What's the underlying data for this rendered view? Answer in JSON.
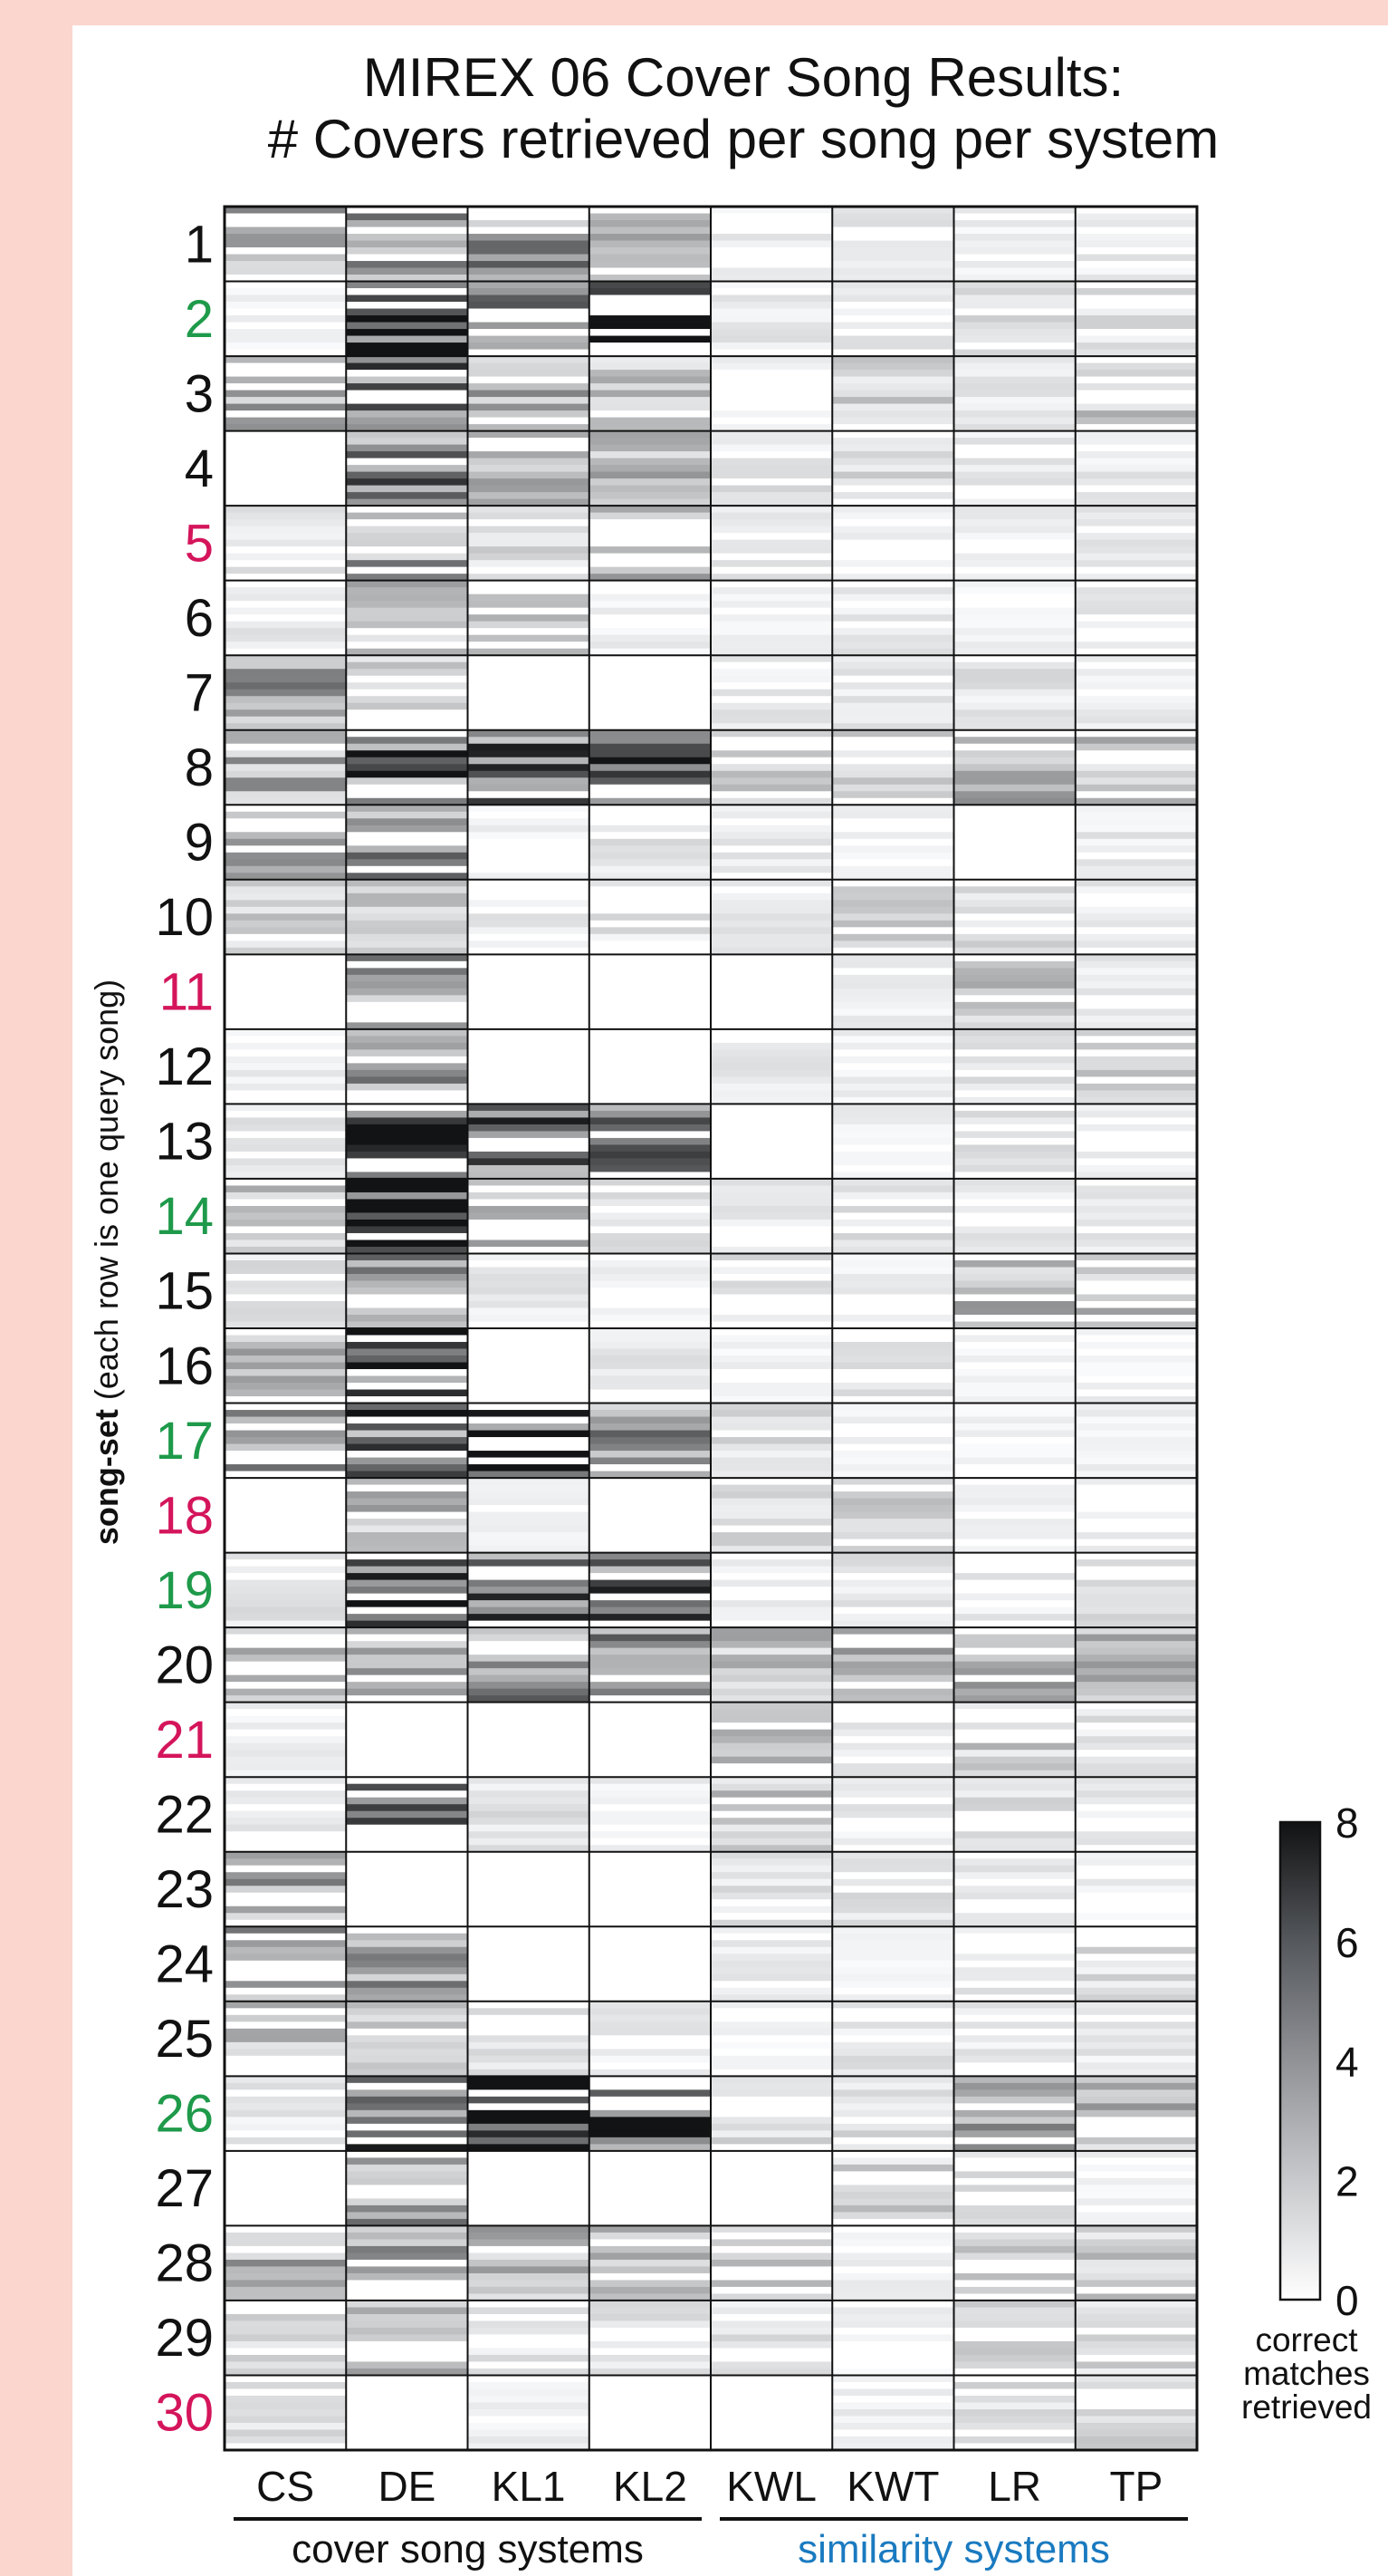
{
  "chart_data": {
    "type": "heatmap",
    "title": [
      "MIREX 06 Cover Song Results:",
      "# Covers retrieved per song per system"
    ],
    "ylabel_bold": "song-set",
    "ylabel_rest": " (each row is one query song)",
    "columns": [
      "CS",
      "DE",
      "KL1",
      "KL2",
      "KWL",
      "KWT",
      "LR",
      "TP"
    ],
    "column_colors": {
      "DE": "#e87a2e"
    },
    "groups": [
      {
        "label": "cover song systems",
        "columns": [
          "CS",
          "DE",
          "KL1",
          "KL2"
        ],
        "color": "#111111"
      },
      {
        "label": "similarity systems",
        "columns": [
          "KWL",
          "KWT",
          "LR",
          "TP"
        ],
        "color": "#1a7ac0"
      }
    ],
    "song_sets": [
      "1",
      "2",
      "3",
      "4",
      "5",
      "6",
      "7",
      "8",
      "9",
      "10",
      "11",
      "12",
      "13",
      "14",
      "15",
      "16",
      "17",
      "18",
      "19",
      "20",
      "21",
      "22",
      "23",
      "24",
      "25",
      "26",
      "27",
      "28",
      "29",
      "30"
    ],
    "label_colors": {
      "green": "#1e9a4a",
      "red": "#d4155b",
      "default": "#111111"
    },
    "song_set_label_colors": {
      "2": "green",
      "14": "green",
      "17": "green",
      "19": "green",
      "26": "green",
      "5": "red",
      "11": "red",
      "18": "red",
      "21": "red",
      "30": "red"
    },
    "rows_per_set": 11,
    "colorbar": {
      "min": 0,
      "max": 8,
      "ticks": [
        0,
        2,
        4,
        6,
        8
      ],
      "label": [
        "correct",
        "matches",
        "retrieved"
      ]
    },
    "set_intensity": [
      [
        3.2,
        4.6,
        3.6,
        2.2,
        0.7,
        0.8,
        0.6,
        0.8
      ],
      [
        0.5,
        8.0,
        5.6,
        6.1,
        0.8,
        0.8,
        1.2,
        1.1
      ],
      [
        2.8,
        5.2,
        3.2,
        2.0,
        0.8,
        1.6,
        0.8,
        2.2
      ],
      [
        0.0,
        4.6,
        3.0,
        2.6,
        1.0,
        1.7,
        0.8,
        0.8
      ],
      [
        1.0,
        3.2,
        1.4,
        2.4,
        0.8,
        0.6,
        0.8,
        0.8
      ],
      [
        0.8,
        2.2,
        1.8,
        0.6,
        0.5,
        0.8,
        0.5,
        0.8
      ],
      [
        3.4,
        1.6,
        0.0,
        0.0,
        0.8,
        0.8,
        1.0,
        0.7
      ],
      [
        2.8,
        5.0,
        4.8,
        4.9,
        1.7,
        1.6,
        2.8,
        2.2
      ],
      [
        3.0,
        3.6,
        0.6,
        1.0,
        0.8,
        0.5,
        0.0,
        0.8
      ],
      [
        1.6,
        1.8,
        0.8,
        1.0,
        0.8,
        1.6,
        1.8,
        0.8
      ],
      [
        0.0,
        3.2,
        0.0,
        0.0,
        0.0,
        0.6,
        2.0,
        0.8
      ],
      [
        0.6,
        3.6,
        0.0,
        0.0,
        0.8,
        0.6,
        1.0,
        1.6
      ],
      [
        1.0,
        5.6,
        5.4,
        4.6,
        0.0,
        0.6,
        1.0,
        0.6
      ],
      [
        2.2,
        8.0,
        2.4,
        1.0,
        0.8,
        1.2,
        0.8,
        0.8
      ],
      [
        1.0,
        4.2,
        0.8,
        0.5,
        1.0,
        0.6,
        2.4,
        2.6
      ],
      [
        2.4,
        6.4,
        0.0,
        0.8,
        0.5,
        1.2,
        0.5,
        0.6
      ],
      [
        3.2,
        5.4,
        7.2,
        3.6,
        1.2,
        0.6,
        0.5,
        0.6
      ],
      [
        0.0,
        2.4,
        0.6,
        0.0,
        1.2,
        1.6,
        0.5,
        0.6
      ],
      [
        1.0,
        6.9,
        5.8,
        5.4,
        0.6,
        1.0,
        0.8,
        1.2
      ],
      [
        2.6,
        2.8,
        3.8,
        5.2,
        2.2,
        2.6,
        3.0,
        2.4
      ],
      [
        0.6,
        0.0,
        0.0,
        0.0,
        2.0,
        0.8,
        1.8,
        1.0
      ],
      [
        0.8,
        4.2,
        1.0,
        0.6,
        2.0,
        0.8,
        1.2,
        0.8
      ],
      [
        3.6,
        0.0,
        0.0,
        0.0,
        1.0,
        1.0,
        0.8,
        0.6
      ],
      [
        3.2,
        3.8,
        0.0,
        0.0,
        0.8,
        0.5,
        0.8,
        1.2
      ],
      [
        2.4,
        1.6,
        1.0,
        0.8,
        0.5,
        1.0,
        0.8,
        0.8
      ],
      [
        0.8,
        4.8,
        7.4,
        6.8,
        1.6,
        1.4,
        3.2,
        2.4
      ],
      [
        0.0,
        3.6,
        0.0,
        0.0,
        0.0,
        1.6,
        1.0,
        0.6
      ],
      [
        2.8,
        3.6,
        2.6,
        2.2,
        1.8,
        0.6,
        1.6,
        1.8
      ],
      [
        1.2,
        2.8,
        1.0,
        1.0,
        1.0,
        0.5,
        1.4,
        1.6
      ],
      [
        1.2,
        0.0,
        0.6,
        0.0,
        0.0,
        0.6,
        1.6,
        1.4
      ]
    ]
  }
}
